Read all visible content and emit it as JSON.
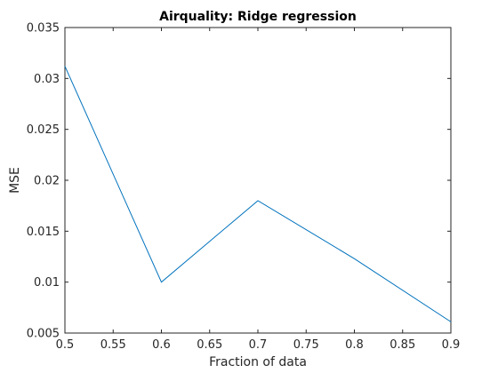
{
  "chart_data": {
    "type": "line",
    "title": "Airquality: Ridge regression",
    "xlabel": "Fraction of data",
    "ylabel": "MSE",
    "xlim": [
      0.5,
      0.9
    ],
    "ylim": [
      0.005,
      0.035
    ],
    "xticks": [
      0.5,
      0.55,
      0.6,
      0.65,
      0.7,
      0.75,
      0.8,
      0.85,
      0.9
    ],
    "xtick_labels": [
      "0.5",
      "0.55",
      "0.6",
      "0.65",
      "0.7",
      "0.75",
      "0.8",
      "0.85",
      "0.9"
    ],
    "yticks": [
      0.005,
      0.01,
      0.015,
      0.02,
      0.025,
      0.03,
      0.035
    ],
    "ytick_labels": [
      "0.005",
      "0.01",
      "0.015",
      "0.02",
      "0.025",
      "0.03",
      "0.035"
    ],
    "grid": false,
    "series": [
      {
        "x": [
          0.5,
          0.6,
          0.7,
          0.8,
          0.9
        ],
        "y": [
          0.0312,
          0.01,
          0.018,
          0.0123,
          0.0061
        ],
        "color": "#0072BD"
      }
    ]
  }
}
